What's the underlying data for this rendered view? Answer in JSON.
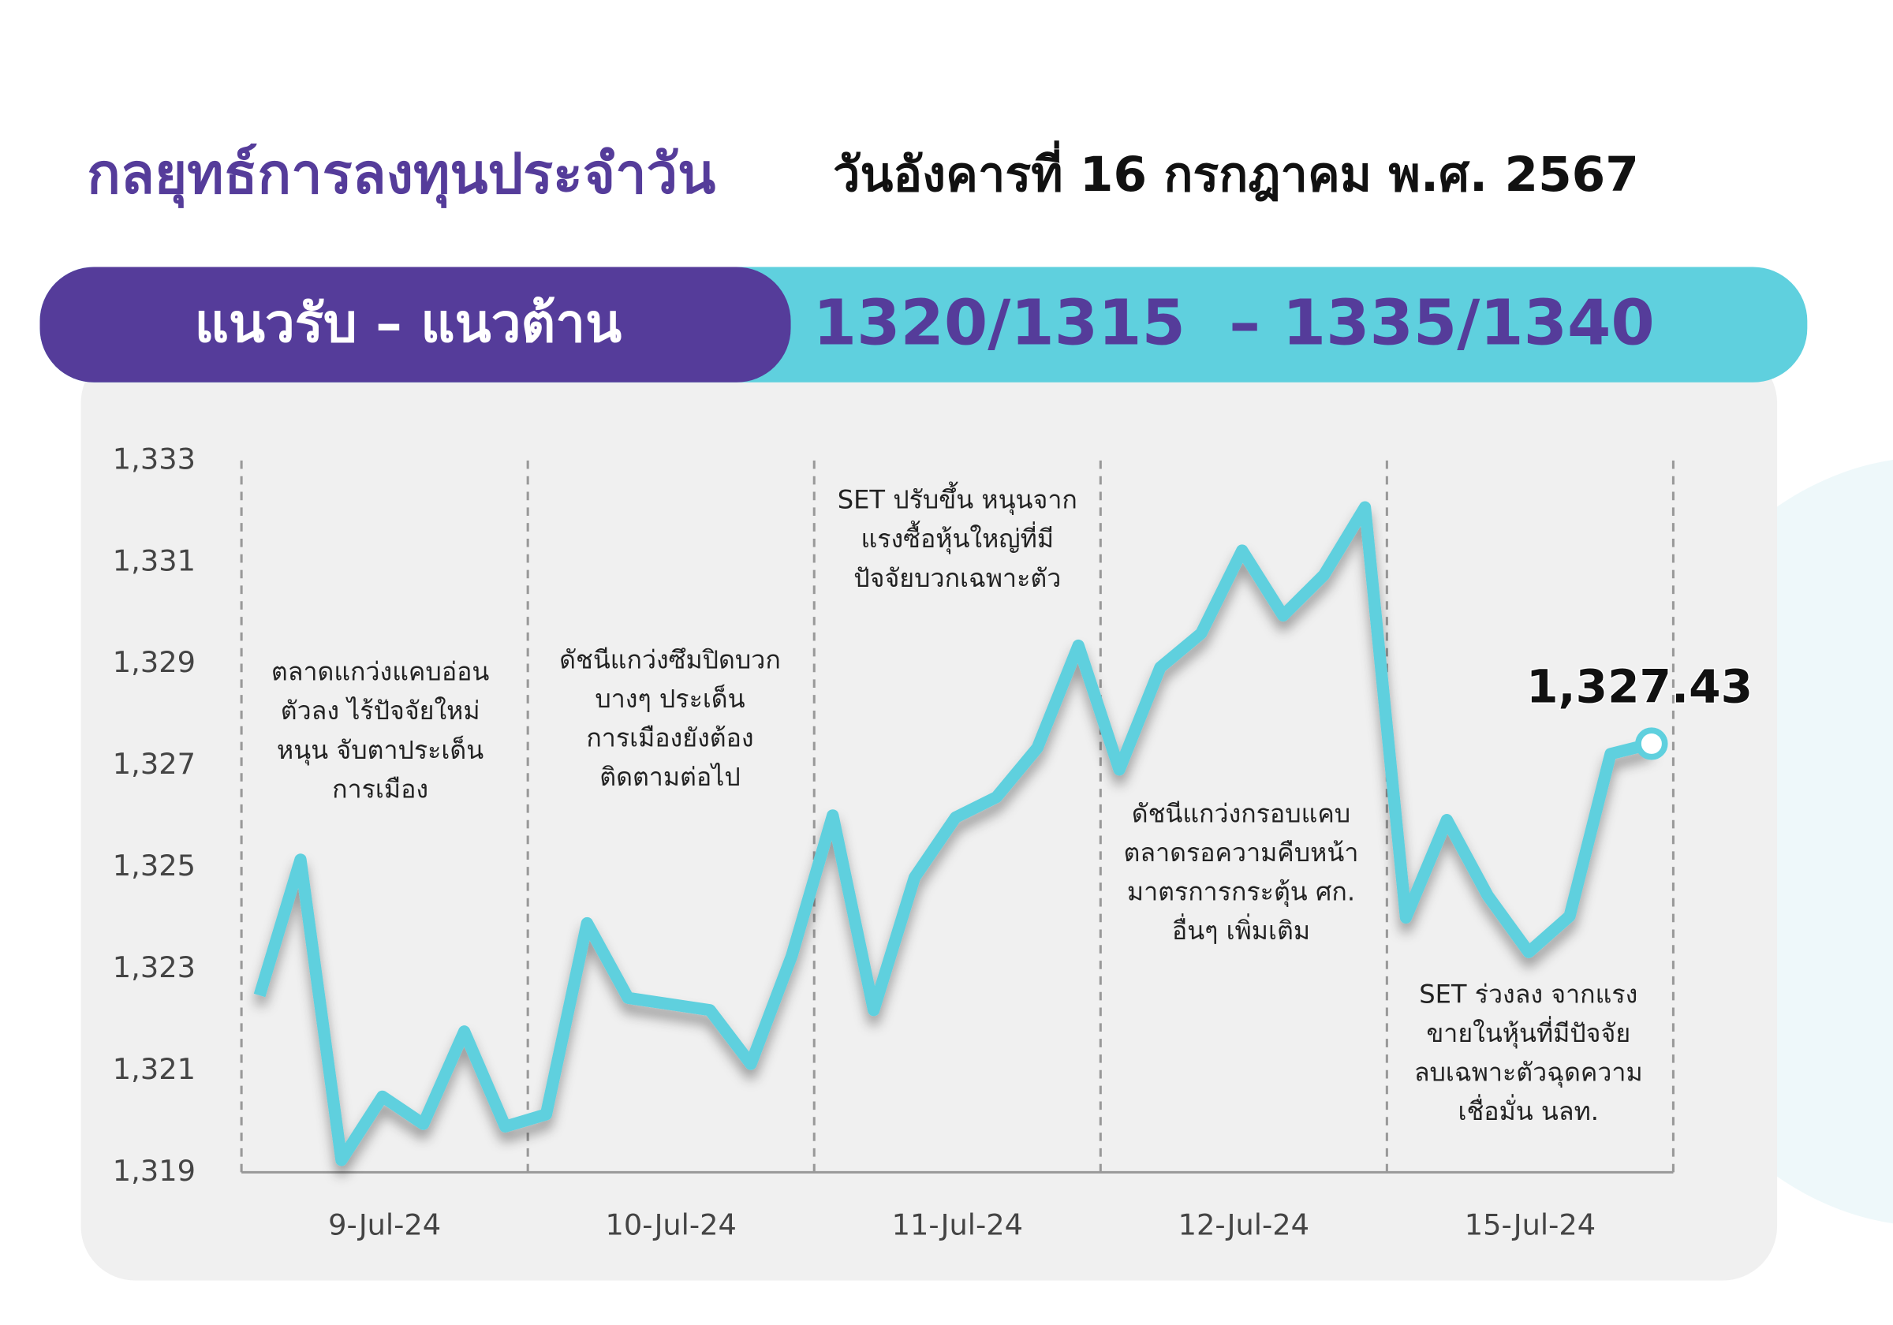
{
  "header": {
    "title": "กลยุทธ์การลงทุนประจำวัน",
    "date": "วันอังคารที่ 16 กรกฎาคม พ.ศ. 2567",
    "band_label": "แนวรับ – แนวต้าน",
    "levels": "1320/1315  – 1335/1340"
  },
  "chart_data": {
    "type": "line",
    "day_labels": [
      "9-Jul-24",
      "10-Jul-24",
      "11-Jul-24",
      "12-Jul-24",
      "15-Jul-24"
    ],
    "series": [
      {
        "color": "#5fd0de",
        "values": [
          1322.48,
          1325.15,
          1319.24,
          1320.49,
          1319.95,
          1321.77,
          1319.9,
          1320.14,
          1323.9,
          1322.43,
          1322.31,
          1322.19,
          1321.13,
          1323.26,
          1326.02,
          1322.19,
          1324.8,
          1325.98,
          1326.38,
          1327.35,
          1329.36,
          1326.92,
          1328.93,
          1329.6,
          1331.23,
          1329.95,
          1330.75,
          1332.08,
          1324.01,
          1325.93,
          1324.44,
          1323.33,
          1324.04,
          1327.23,
          1327.43
        ]
      }
    ],
    "last_label": "1,327.43",
    "ylim": [
      1319,
      1333
    ],
    "yticks": [
      {
        "value": 1319,
        "label": "1,319"
      },
      {
        "value": 1321,
        "label": "1,321"
      },
      {
        "value": 1323,
        "label": "1,323"
      },
      {
        "value": 1325,
        "label": "1,325"
      },
      {
        "value": 1327,
        "label": "1,327"
      },
      {
        "value": 1329,
        "label": "1,329"
      },
      {
        "value": 1331,
        "label": "1,331"
      },
      {
        "value": 1333,
        "label": "1,333"
      }
    ],
    "annotations": [
      [
        "ตลาดแกว่งแคบอ่อน",
        "ตัวลง ไร้ปัจจัยใหม่",
        "หนุน จับตาประเด็น",
        "การเมือง"
      ],
      [
        "ดัชนีแกว่งซึมปิดบวก",
        "บางๆ ประเด็น",
        "การเมืองยังต้อง",
        "ติดตามต่อไป"
      ],
      [
        "SET ปรับขึ้น หนุนจาก",
        "แรงซื้อหุ้นใหญ่ที่มี",
        "ปัจจัยบวกเฉพาะตัว"
      ],
      [
        "ดัชนีแกว่งกรอบแคบ",
        "ตลาดรอความคืบหน้า",
        "มาตรการกระตุ้น ศก.",
        "อื่นๆ เพิ่มเติม"
      ],
      [
        "SET ร่วงลง จากแรง",
        "ขายในหุ้นที่มีปัจจัย",
        "ลบเฉพาะตัวฉุดความ",
        "เชื่อมั่น นลท."
      ]
    ]
  }
}
